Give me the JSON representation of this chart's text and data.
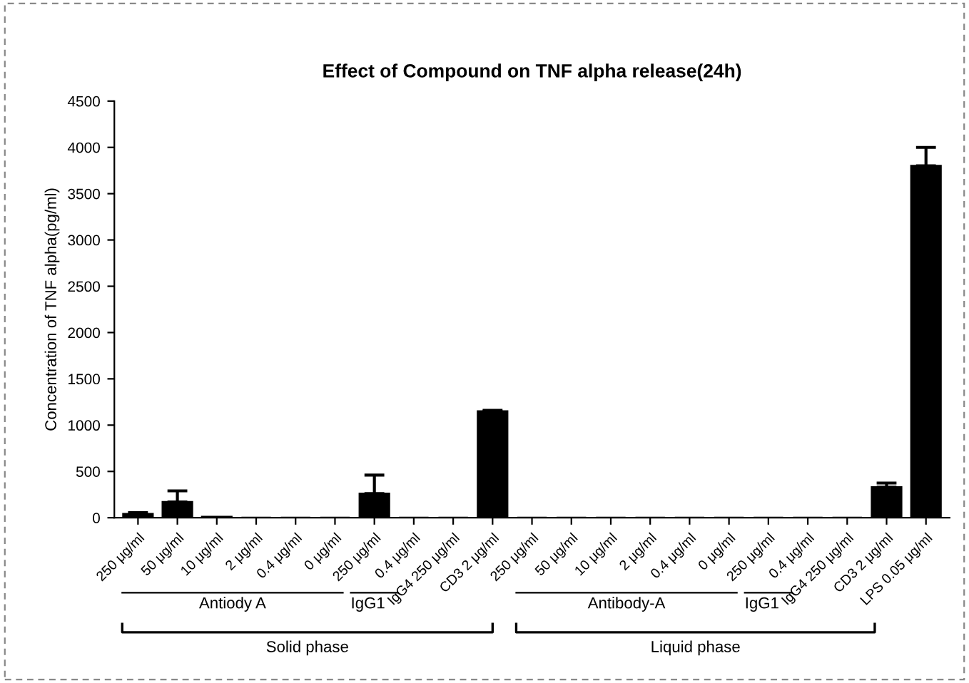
{
  "chart_data": {
    "type": "bar",
    "title": "Effect of Compound on TNF alpha release(24h)",
    "ylabel": "Concentration of TNF alpha(pg/ml)",
    "categories": [
      "250 μg/ml",
      "50 μg/ml",
      "10 μg/ml",
      "2 μg/ml",
      "0.4 μg/ml",
      "0 μg/ml",
      "250 μg/ml",
      "0.4 μg/ml",
      "IgG4 250 μg/ml",
      "CD3 2 μg/ml",
      "250 μg/ml",
      "50 μg/ml",
      "10 μg/ml",
      "2 μg/ml",
      "0.4 μg/ml",
      "0 μg/ml",
      "250 μg/ml",
      "0.4 μg/ml",
      "IgG4 250 μg/ml",
      "CD3 2 μg/ml",
      "LPS 0.05 μg/ml"
    ],
    "values": [
      40,
      170,
      10,
      0,
      0,
      0,
      260,
      0,
      0,
      1150,
      0,
      0,
      0,
      0,
      0,
      0,
      0,
      0,
      0,
      330,
      3800
    ],
    "errors": [
      [
        40,
        55
      ],
      [
        170,
        290
      ],
      null,
      null,
      null,
      null,
      [
        260,
        460
      ],
      null,
      null,
      [
        1150,
        1160
      ],
      null,
      null,
      null,
      null,
      null,
      null,
      null,
      null,
      null,
      [
        330,
        375
      ],
      [
        3800,
        4000
      ]
    ],
    "color": "#000000",
    "ylim": [
      0,
      4500
    ],
    "yticks": [
      0,
      500,
      1000,
      1500,
      2000,
      2500,
      3000,
      3500,
      4000,
      4500
    ],
    "grid": false,
    "annotations": [
      "Antiody A",
      "IgG1",
      "Solid phase",
      "Antibody-A",
      "IgG1",
      "Liquid phase"
    ]
  }
}
